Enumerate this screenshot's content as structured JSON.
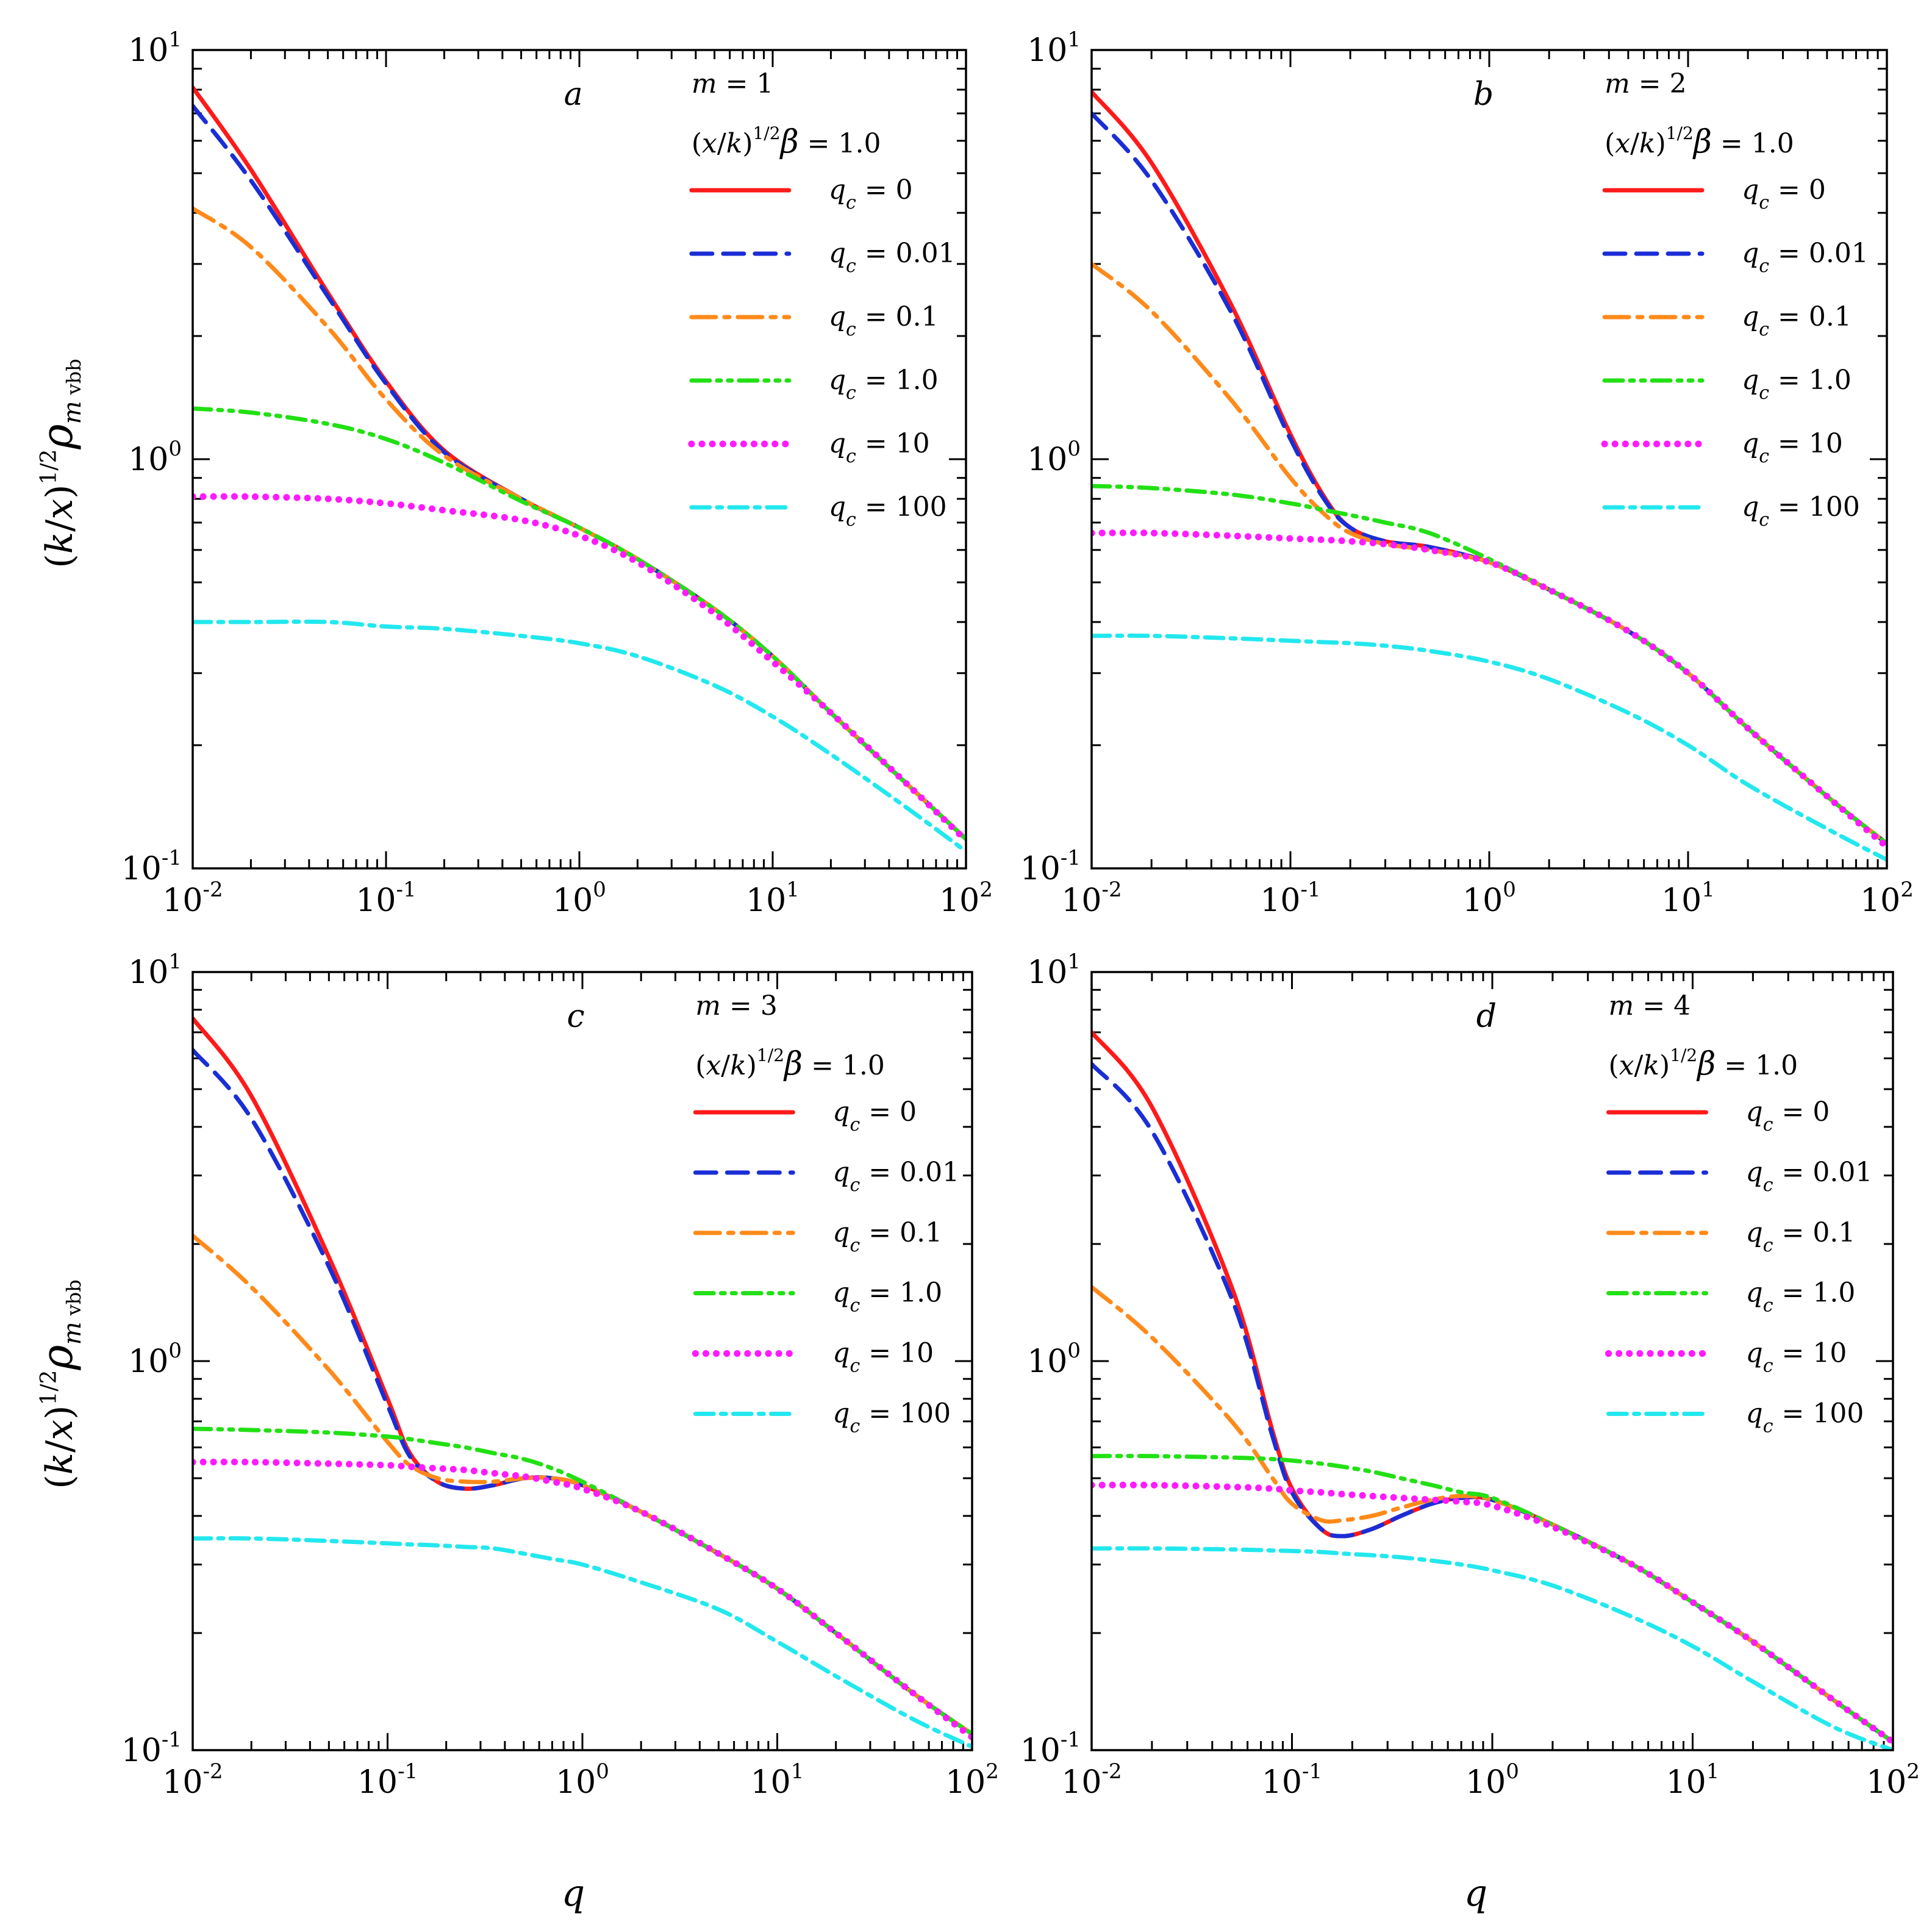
{
  "figure": {
    "ylabel": {
      "open": "(",
      "k": "k",
      "slash": "/",
      "x": "x",
      "close": ")",
      "exp": "1/2",
      "rho": "ρ",
      "sub_m": "m",
      "sub_rest": " vbb"
    },
    "xlabel": "q"
  },
  "series_styles": [
    {
      "key": "0",
      "label": "= 0",
      "color": "#ff1a1a",
      "dash": "",
      "width": 7
    },
    {
      "key": "0.01",
      "label": "= 0.01",
      "color": "#1a2ed6",
      "dash": "34,18",
      "width": 7
    },
    {
      "key": "0.1",
      "label": "= 0.1",
      "color": "#ff8a1a",
      "dash": "40,14,8,14",
      "width": 7
    },
    {
      "key": "1.0",
      "label": "= 1.0",
      "color": "#22e014",
      "dash": "30,12,6,12,6,12",
      "width": 7
    },
    {
      "key": "10",
      "label": "= 10",
      "color": "#ff1aff",
      "dash": "0.1,17",
      "width": 11
    },
    {
      "key": "100",
      "label": "= 100",
      "color": "#22e8ee",
      "dash": "30,12,8,12",
      "width": 7
    }
  ],
  "legend_q_symbol": "q",
  "legend_q_sub": "c",
  "chart_data": [
    {
      "type": "line",
      "panel": "a",
      "m_label": "m = 1",
      "param": {
        "open": "(",
        "x": "x",
        "slash": "/",
        "k": "k",
        "close": ")",
        "exp": "1/2",
        "beta": "β",
        "value": " = 1.0"
      },
      "xlabel": "",
      "ylabel": "(k/x)^1/2 ρ_m vbb",
      "xscale": "log",
      "yscale": "log",
      "xlim": [
        0.01,
        100
      ],
      "ylim": [
        0.1,
        10
      ],
      "x_ticks": [
        "10⁻²",
        "10⁻¹",
        "10⁰",
        "10¹",
        "10²"
      ],
      "y_ticks": [
        "10⁻¹",
        "10⁰",
        "10¹"
      ],
      "x": [
        0.01,
        0.02,
        0.05,
        0.1,
        0.2,
        0.5,
        1,
        2,
        5,
        10,
        20,
        50,
        100
      ],
      "series": [
        {
          "name": "q_c = 0",
          "values": [
            8.1,
            5.1,
            2.55,
            1.55,
            1.05,
            0.8,
            0.68,
            0.57,
            0.43,
            0.33,
            0.24,
            0.16,
            0.118
          ]
        },
        {
          "name": "q_c = 0.01",
          "values": [
            7.3,
            4.8,
            2.5,
            1.53,
            1.04,
            0.8,
            0.68,
            0.57,
            0.43,
            0.33,
            0.24,
            0.16,
            0.118
          ]
        },
        {
          "name": "q_c = 0.1",
          "values": [
            4.1,
            3.3,
            2.1,
            1.4,
            1.02,
            0.8,
            0.68,
            0.57,
            0.43,
            0.33,
            0.24,
            0.16,
            0.118
          ]
        },
        {
          "name": "q_c = 1.0",
          "values": [
            1.33,
            1.3,
            1.22,
            1.12,
            0.98,
            0.79,
            0.68,
            0.57,
            0.43,
            0.33,
            0.24,
            0.16,
            0.118
          ]
        },
        {
          "name": "q_c = 10",
          "values": [
            0.81,
            0.81,
            0.8,
            0.78,
            0.75,
            0.71,
            0.65,
            0.56,
            0.42,
            0.32,
            0.24,
            0.16,
            0.117
          ]
        },
        {
          "name": "q_c = 100",
          "values": [
            0.4,
            0.4,
            0.4,
            0.39,
            0.385,
            0.37,
            0.355,
            0.33,
            0.28,
            0.235,
            0.19,
            0.14,
            0.11
          ]
        }
      ]
    },
    {
      "type": "line",
      "panel": "b",
      "m_label": "m = 2",
      "param": {
        "open": "(",
        "x": "x",
        "slash": "/",
        "k": "k",
        "close": ")",
        "exp": "1/2",
        "beta": "β",
        "value": " = 1.0"
      },
      "xlabel": "",
      "ylabel": "(k/x)^1/2 ρ_m vbb",
      "xscale": "log",
      "yscale": "log",
      "xlim": [
        0.01,
        100
      ],
      "ylim": [
        0.1,
        10
      ],
      "x_ticks": [
        "10⁻²",
        "10⁻¹",
        "10⁰",
        "10¹",
        "10²"
      ],
      "y_ticks": [
        "10⁻¹",
        "10⁰",
        "10¹"
      ],
      "x": [
        0.01,
        0.02,
        0.05,
        0.1,
        0.15,
        0.2,
        0.3,
        0.5,
        1,
        2,
        5,
        10,
        20,
        50,
        100
      ],
      "series": [
        {
          "name": "q_c = 0",
          "values": [
            7.9,
            5.3,
            2.4,
            1.15,
            0.8,
            0.68,
            0.63,
            0.61,
            0.56,
            0.48,
            0.38,
            0.3,
            0.22,
            0.15,
            0.115
          ]
        },
        {
          "name": "q_c = 0.01",
          "values": [
            7.0,
            4.8,
            2.3,
            1.12,
            0.79,
            0.68,
            0.63,
            0.61,
            0.56,
            0.48,
            0.38,
            0.3,
            0.22,
            0.15,
            0.115
          ]
        },
        {
          "name": "q_c = 0.1",
          "values": [
            3.0,
            2.3,
            1.4,
            0.9,
            0.73,
            0.66,
            0.62,
            0.6,
            0.56,
            0.48,
            0.38,
            0.3,
            0.22,
            0.15,
            0.115
          ]
        },
        {
          "name": "q_c = 1.0",
          "values": [
            0.86,
            0.85,
            0.82,
            0.78,
            0.75,
            0.73,
            0.7,
            0.66,
            0.57,
            0.48,
            0.38,
            0.3,
            0.22,
            0.15,
            0.115
          ]
        },
        {
          "name": "q_c = 10",
          "values": [
            0.66,
            0.66,
            0.65,
            0.64,
            0.635,
            0.63,
            0.62,
            0.6,
            0.56,
            0.48,
            0.38,
            0.3,
            0.22,
            0.15,
            0.113
          ]
        },
        {
          "name": "q_c = 100",
          "values": [
            0.37,
            0.37,
            0.365,
            0.36,
            0.357,
            0.355,
            0.35,
            0.34,
            0.32,
            0.29,
            0.24,
            0.2,
            0.16,
            0.125,
            0.105
          ]
        }
      ]
    },
    {
      "type": "line",
      "panel": "c",
      "m_label": "m = 3",
      "param": {
        "open": "(",
        "x": "x",
        "slash": "/",
        "k": "k",
        "close": ")",
        "exp": "1/2",
        "beta": "β",
        "value": " = 1.0"
      },
      "xlabel": "",
      "ylabel": "(k/x)^1/2 ρ_m vbb",
      "xscale": "log",
      "yscale": "log",
      "xlim": [
        0.01,
        100
      ],
      "ylim": [
        0.1,
        10
      ],
      "x_ticks": [
        "10⁻²",
        "10⁻¹",
        "10⁰",
        "10¹",
        "10²"
      ],
      "y_ticks": [
        "10⁻¹",
        "10⁰",
        "10¹"
      ],
      "x": [
        0.01,
        0.02,
        0.05,
        0.1,
        0.13,
        0.18,
        0.25,
        0.35,
        0.5,
        0.7,
        1,
        2,
        5,
        10,
        20,
        50,
        100
      ],
      "series": [
        {
          "name": "q_c = 0",
          "values": [
            7.6,
            4.8,
            1.85,
            0.8,
            0.58,
            0.49,
            0.47,
            0.48,
            0.5,
            0.5,
            0.48,
            0.41,
            0.32,
            0.26,
            0.2,
            0.14,
            0.11
          ]
        },
        {
          "name": "q_c = 0.01",
          "values": [
            6.3,
            4.2,
            1.75,
            0.77,
            0.57,
            0.49,
            0.47,
            0.48,
            0.5,
            0.5,
            0.48,
            0.41,
            0.32,
            0.26,
            0.2,
            0.14,
            0.11
          ]
        },
        {
          "name": "q_c = 0.1",
          "values": [
            2.1,
            1.55,
            0.95,
            0.62,
            0.54,
            0.5,
            0.49,
            0.49,
            0.5,
            0.5,
            0.48,
            0.41,
            0.32,
            0.26,
            0.2,
            0.14,
            0.11
          ]
        },
        {
          "name": "q_c = 1.0",
          "values": [
            0.67,
            0.665,
            0.655,
            0.64,
            0.63,
            0.615,
            0.6,
            0.58,
            0.56,
            0.53,
            0.49,
            0.41,
            0.32,
            0.26,
            0.2,
            0.14,
            0.11
          ]
        },
        {
          "name": "q_c = 10",
          "values": [
            0.55,
            0.55,
            0.545,
            0.54,
            0.535,
            0.53,
            0.525,
            0.515,
            0.505,
            0.49,
            0.47,
            0.41,
            0.32,
            0.26,
            0.2,
            0.14,
            0.108
          ]
        },
        {
          "name": "q_c = 100",
          "values": [
            0.35,
            0.35,
            0.345,
            0.34,
            0.338,
            0.336,
            0.333,
            0.33,
            0.32,
            0.31,
            0.3,
            0.27,
            0.23,
            0.19,
            0.155,
            0.12,
            0.102
          ]
        }
      ]
    },
    {
      "type": "line",
      "panel": "d",
      "m_label": "m = 4",
      "param": {
        "open": "(",
        "x": "x",
        "slash": "/",
        "k": "k",
        "close": ")",
        "exp": "1/2",
        "beta": "β",
        "value": " = 1.0"
      },
      "xlabel": "q",
      "ylabel": "(k/x)^1/2 ρ_m vbb",
      "xscale": "log",
      "yscale": "log",
      "xlim": [
        0.01,
        100
      ],
      "ylim": [
        0.1,
        10
      ],
      "x_ticks": [
        "10⁻²",
        "10⁻¹",
        "10⁰",
        "10¹",
        "10²"
      ],
      "y_ticks": [
        "10⁻¹",
        "10⁰",
        "10¹"
      ],
      "x": [
        0.01,
        0.02,
        0.05,
        0.08,
        0.1,
        0.14,
        0.18,
        0.25,
        0.35,
        0.5,
        0.7,
        1,
        2,
        5,
        10,
        20,
        50,
        100
      ],
      "series": [
        {
          "name": "q_c = 0",
          "values": [
            7.0,
            4.5,
            1.55,
            0.66,
            0.47,
            0.37,
            0.355,
            0.37,
            0.4,
            0.43,
            0.445,
            0.44,
            0.38,
            0.3,
            0.24,
            0.19,
            0.135,
            0.105
          ]
        },
        {
          "name": "q_c = 0.01",
          "values": [
            5.8,
            3.9,
            1.45,
            0.64,
            0.46,
            0.37,
            0.355,
            0.37,
            0.4,
            0.43,
            0.445,
            0.44,
            0.38,
            0.3,
            0.24,
            0.19,
            0.135,
            0.105
          ]
        },
        {
          "name": "q_c = 0.1",
          "values": [
            1.55,
            1.15,
            0.7,
            0.5,
            0.43,
            0.39,
            0.39,
            0.4,
            0.42,
            0.44,
            0.45,
            0.44,
            0.38,
            0.3,
            0.24,
            0.19,
            0.135,
            0.105
          ]
        },
        {
          "name": "q_c = 1.0",
          "values": [
            0.57,
            0.57,
            0.565,
            0.56,
            0.555,
            0.545,
            0.535,
            0.52,
            0.5,
            0.48,
            0.46,
            0.445,
            0.38,
            0.3,
            0.24,
            0.19,
            0.135,
            0.105
          ]
        },
        {
          "name": "q_c = 10",
          "values": [
            0.48,
            0.48,
            0.475,
            0.47,
            0.465,
            0.46,
            0.455,
            0.45,
            0.445,
            0.44,
            0.435,
            0.425,
            0.375,
            0.3,
            0.24,
            0.19,
            0.135,
            0.105
          ]
        },
        {
          "name": "q_c = 100",
          "values": [
            0.33,
            0.33,
            0.328,
            0.326,
            0.325,
            0.323,
            0.32,
            0.317,
            0.313,
            0.307,
            0.3,
            0.29,
            0.265,
            0.22,
            0.185,
            0.15,
            0.115,
            0.1
          ]
        }
      ]
    }
  ]
}
